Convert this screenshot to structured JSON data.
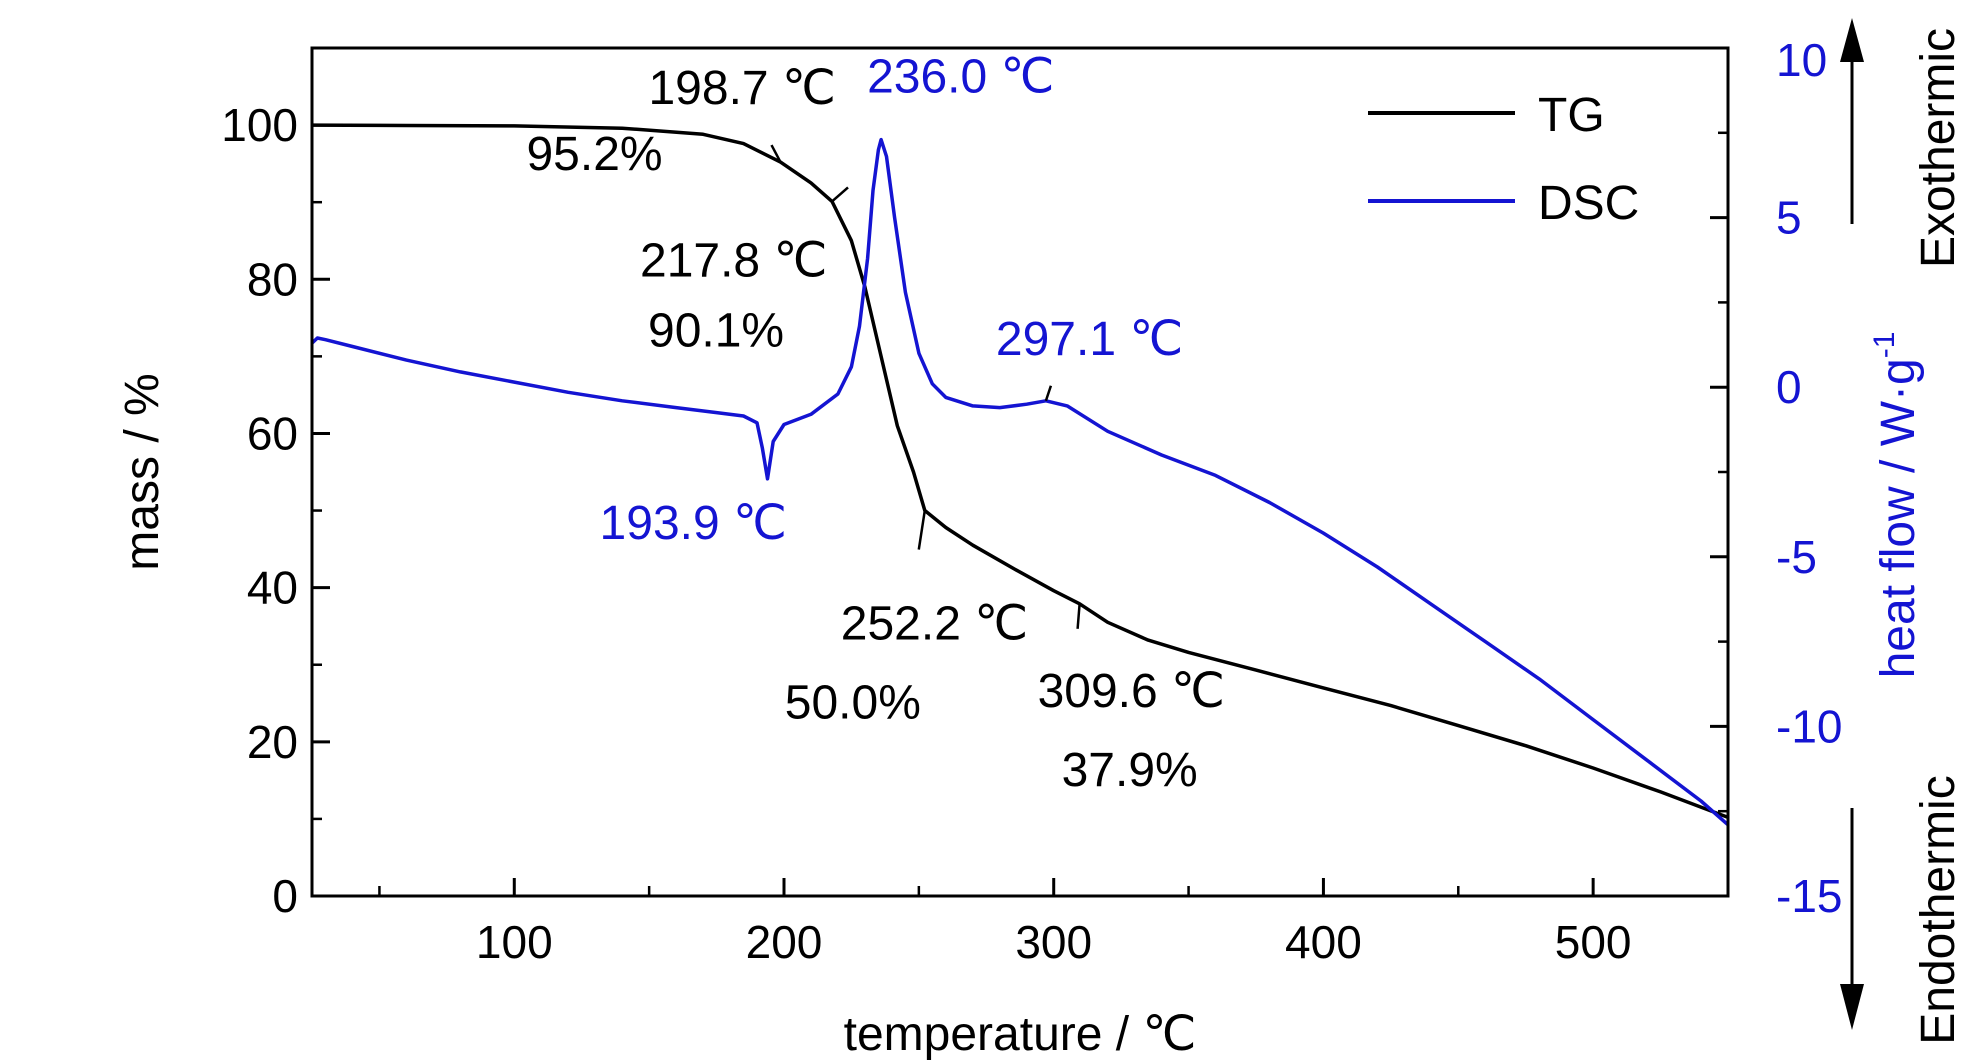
{
  "chart_data": {
    "type": "line",
    "xlabel": "temperature / ℃",
    "ylabel_left": "mass / %",
    "ylabel_right": "heat flow / W·g",
    "ylabel_right_superscript": "-1",
    "xlim": [
      25,
      550
    ],
    "ylim_left": [
      0,
      110
    ],
    "ylim_right": [
      -15,
      10
    ],
    "x_ticks": [
      100,
      200,
      300,
      400,
      500
    ],
    "y_left_ticks": [
      0,
      20,
      40,
      60,
      80,
      100
    ],
    "y_right_ticks": [
      -15,
      -10,
      -5,
      0,
      5,
      10
    ],
    "legend_position": "top-right",
    "grid": false,
    "colors": {
      "TG": "#000000",
      "DSC": "#1414d2"
    },
    "side_labels": {
      "exothermic": "Exothermic",
      "endothermic": "Endothermic"
    },
    "series": [
      {
        "name": "TG",
        "axis": "left",
        "x": [
          25,
          60,
          100,
          140,
          170,
          185,
          198.7,
          210,
          217.8,
          225,
          230,
          236,
          242,
          248,
          252.2,
          260,
          270,
          285,
          300,
          309.6,
          320,
          335,
          350,
          375,
          400,
          425,
          450,
          475,
          500,
          525,
          550
        ],
        "y": [
          100,
          99.95,
          99.9,
          99.6,
          98.8,
          97.6,
          95.2,
          92.5,
          90.1,
          85,
          79,
          70,
          61,
          55,
          50.0,
          47.8,
          45.5,
          42.5,
          39.6,
          37.9,
          35.5,
          33.2,
          31.6,
          29.3,
          27.0,
          24.7,
          22.1,
          19.5,
          16.6,
          13.5,
          10.2
        ]
      },
      {
        "name": "DSC",
        "axis": "right",
        "x": [
          25,
          27,
          30,
          40,
          60,
          80,
          100,
          120,
          140,
          160,
          175,
          185,
          190,
          192,
          193.9,
          196,
          200,
          210,
          220,
          225,
          228,
          231,
          233,
          235,
          236.0,
          238,
          241,
          245,
          250,
          255,
          260,
          270,
          280,
          290,
          297.1,
          305,
          320,
          340,
          360,
          380,
          400,
          420,
          440,
          460,
          480,
          500,
          520,
          540,
          550
        ],
        "y": [
          1.3,
          1.45,
          1.4,
          1.2,
          0.8,
          0.45,
          0.15,
          -0.15,
          -0.4,
          -0.6,
          -0.75,
          -0.85,
          -1.05,
          -1.8,
          -2.7,
          -1.6,
          -1.1,
          -0.8,
          -0.2,
          0.6,
          1.8,
          3.8,
          5.8,
          7.0,
          7.3,
          6.8,
          5.0,
          2.8,
          1.0,
          0.1,
          -0.3,
          -0.55,
          -0.6,
          -0.5,
          -0.4,
          -0.55,
          -1.3,
          -2.0,
          -2.6,
          -3.4,
          -4.3,
          -5.3,
          -6.4,
          -7.5,
          -8.6,
          -9.8,
          -11.0,
          -12.2,
          -12.9
        ]
      }
    ],
    "annotations": [
      {
        "text": "198.7 ℃",
        "color": "#000000",
        "x": 198.7,
        "y": 95.2,
        "axis": "left"
      },
      {
        "text": "95.2%",
        "color": "#000000"
      },
      {
        "text": "217.8 ℃",
        "color": "#000000",
        "x": 217.8,
        "y": 90.1,
        "axis": "left"
      },
      {
        "text": "90.1%",
        "color": "#000000"
      },
      {
        "text": "252.2 ℃",
        "color": "#000000",
        "x": 252.2,
        "y": 50.0,
        "axis": "left"
      },
      {
        "text": "50.0%",
        "color": "#000000"
      },
      {
        "text": "309.6 ℃",
        "color": "#000000",
        "x": 309.6,
        "y": 37.9,
        "axis": "left"
      },
      {
        "text": "37.9%",
        "color": "#000000"
      },
      {
        "text": "236.0 ℃",
        "color": "#1414d2",
        "x": 236.0,
        "y": 7.3,
        "axis": "right"
      },
      {
        "text": "297.1 ℃",
        "color": "#1414d2",
        "x": 297.1,
        "y": -0.4,
        "axis": "right"
      },
      {
        "text": "193.9 ℃",
        "color": "#1414d2",
        "x": 193.9,
        "y": -2.7,
        "axis": "right"
      }
    ]
  }
}
